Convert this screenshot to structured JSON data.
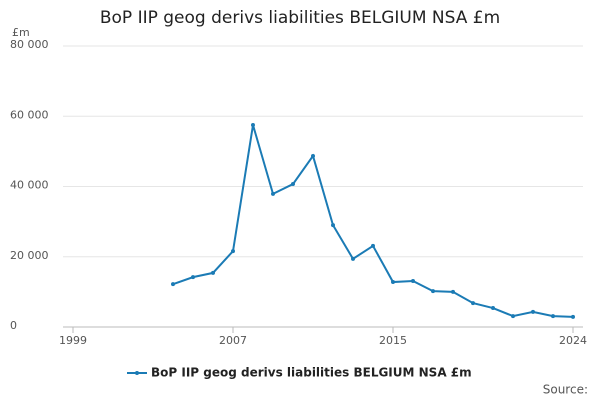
{
  "chart_data": {
    "type": "line",
    "title": "BoP IIP geog derivs liabilities BELGIUM NSA £m",
    "y_unit": "£m",
    "source": "Source:",
    "x": [
      2004,
      2005,
      2006,
      2007,
      2008,
      2009,
      2010,
      2011,
      2012,
      2013,
      2014,
      2015,
      2016,
      2017,
      2018,
      2019,
      2020,
      2021,
      2022,
      2023,
      2024
    ],
    "series": [
      {
        "name": "BoP IIP geog derivs liabilities BELGIUM NSA £m",
        "color": "#1b7bb5",
        "values": [
          12200,
          14200,
          15400,
          21600,
          57500,
          37900,
          40700,
          48700,
          29000,
          19400,
          23100,
          12800,
          13100,
          10200,
          10000,
          6800,
          5400,
          3100,
          4300,
          3100,
          2900
        ]
      }
    ],
    "xlim": [
      1998.5,
      2024.5
    ],
    "xticks": [
      1999,
      2007,
      2015,
      2024
    ],
    "ylim": [
      0,
      80000
    ],
    "yticks": [
      0,
      {
        "value": 20000,
        "label": "20 000"
      },
      {
        "value": 40000,
        "label": "40 000"
      },
      {
        "value": 60000,
        "label": "60 000"
      },
      {
        "value": 80000,
        "label": "80 000"
      }
    ],
    "grid": true
  }
}
